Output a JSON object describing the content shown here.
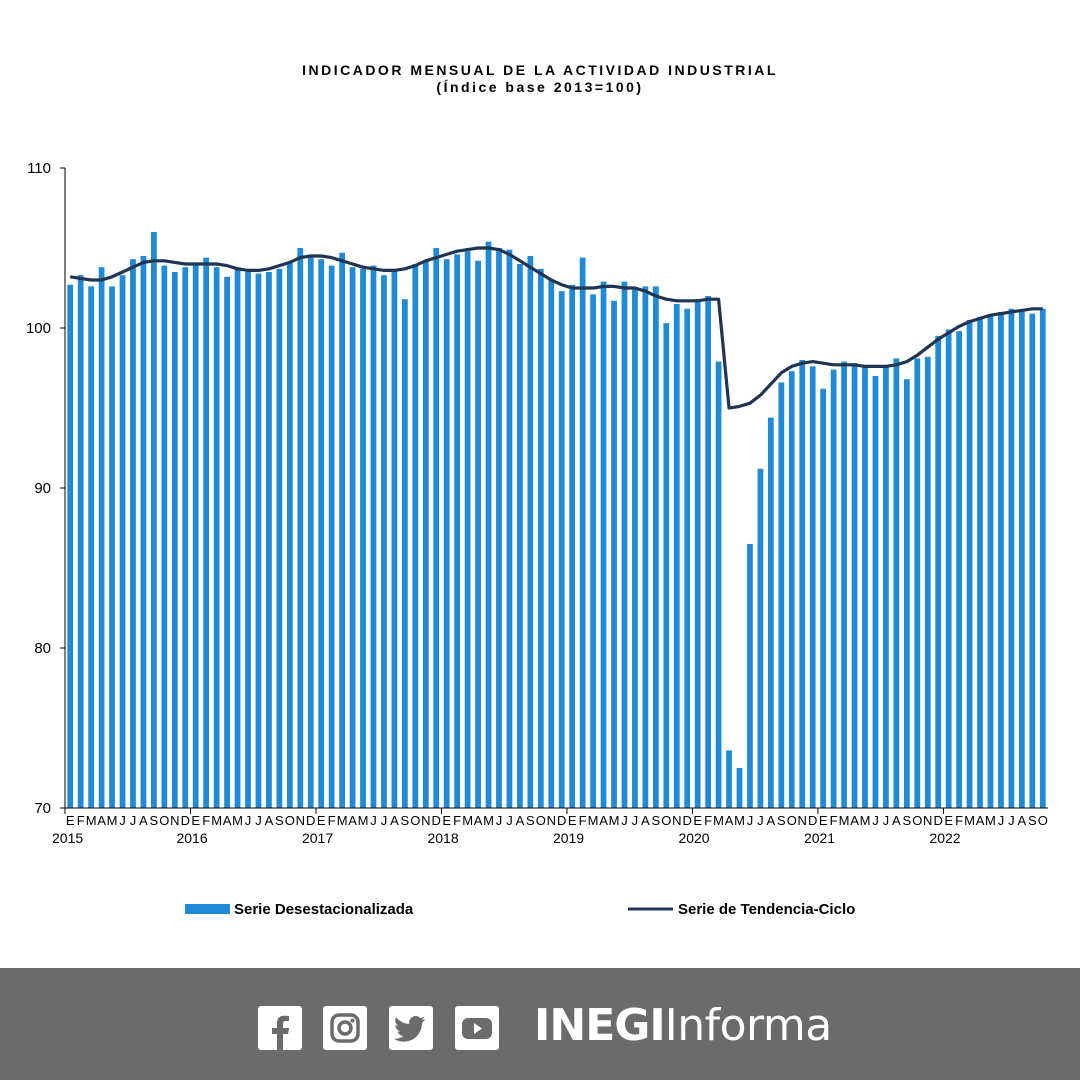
{
  "title": "INDICADOR MENSUAL DE LA ACTIVIDAD INDUSTRIAL",
  "subtitle": "(Índice base 2013=100)",
  "chart_data": {
    "type": "bar",
    "y_range": [
      70,
      110
    ],
    "y_ticks": [
      70,
      80,
      90,
      100,
      110
    ],
    "grid": false,
    "legend_position": "bottom",
    "colors": {
      "bars": "#1e8ad8",
      "trend": "#1f3553"
    },
    "month_letters": [
      "E",
      "F",
      "M",
      "A",
      "M",
      "J",
      "J",
      "A",
      "S",
      "O",
      "N",
      "D"
    ],
    "last_year_letters": [
      "E",
      "F",
      "M",
      "A",
      "M",
      "J",
      "J",
      "A",
      "S",
      "O"
    ],
    "years": [
      "2015",
      "2016",
      "2017",
      "2018",
      "2019",
      "2020",
      "2021",
      "2022"
    ],
    "series": [
      {
        "name": "Serie Desestacionalizada",
        "kind": "bar",
        "values": [
          102.7,
          103.3,
          102.6,
          103.8,
          102.6,
          103.3,
          104.3,
          104.5,
          106.0,
          103.9,
          103.5,
          103.8,
          104.0,
          104.4,
          103.8,
          103.2,
          103.8,
          103.5,
          103.4,
          103.5,
          103.7,
          104.1,
          105.0,
          104.4,
          104.3,
          103.9,
          104.7,
          103.8,
          103.7,
          103.9,
          103.3,
          103.7,
          101.8,
          104.0,
          104.2,
          105.0,
          104.3,
          104.6,
          104.8,
          104.2,
          105.4,
          105.0,
          104.9,
          104.0,
          104.5,
          103.7,
          103.0,
          102.3,
          102.7,
          104.4,
          102.1,
          102.9,
          101.7,
          102.9,
          102.5,
          102.6,
          102.6,
          100.3,
          101.5,
          101.2,
          101.8,
          102.0,
          97.9,
          73.6,
          72.5,
          86.5,
          91.2,
          94.4,
          96.6,
          97.3,
          98.0,
          97.6,
          96.2,
          97.4,
          97.9,
          97.8,
          97.6,
          97.0,
          97.6,
          98.1,
          96.8,
          98.1,
          98.2,
          99.5,
          99.9,
          99.8,
          100.5,
          100.7,
          100.8,
          101.0,
          101.2,
          101.1,
          100.9,
          101.2
        ]
      },
      {
        "name": "Serie de Tendencia-Ciclo",
        "kind": "line",
        "values": [
          103.2,
          103.1,
          103.0,
          103.0,
          103.2,
          103.5,
          103.8,
          104.1,
          104.2,
          104.2,
          104.1,
          104.0,
          104.0,
          104.0,
          104.0,
          103.9,
          103.7,
          103.6,
          103.6,
          103.7,
          103.9,
          104.1,
          104.4,
          104.5,
          104.5,
          104.4,
          104.2,
          104.0,
          103.8,
          103.7,
          103.6,
          103.6,
          103.7,
          103.9,
          104.2,
          104.4,
          104.6,
          104.8,
          104.9,
          105.0,
          105.0,
          104.9,
          104.6,
          104.2,
          103.8,
          103.4,
          103.0,
          102.7,
          102.5,
          102.5,
          102.5,
          102.6,
          102.6,
          102.5,
          102.5,
          102.3,
          102.0,
          101.8,
          101.7,
          101.7,
          101.7,
          101.8,
          101.8,
          95.0,
          95.1,
          95.3,
          95.8,
          96.5,
          97.2,
          97.6,
          97.8,
          97.9,
          97.8,
          97.7,
          97.7,
          97.7,
          97.6,
          97.6,
          97.6,
          97.7,
          97.9,
          98.3,
          98.8,
          99.3,
          99.7,
          100.1,
          100.4,
          100.6,
          100.8,
          100.9,
          101.0,
          101.1,
          101.2,
          101.2
        ]
      }
    ],
    "legend": [
      "Serie Desestacionalizada",
      "Serie de Tendencia-Ciclo"
    ]
  },
  "footer": {
    "icons": [
      "facebook-icon",
      "instagram-icon",
      "twitter-icon",
      "youtube-icon"
    ],
    "brand_bold": "INEGI",
    "brand_regular": "Informa"
  }
}
